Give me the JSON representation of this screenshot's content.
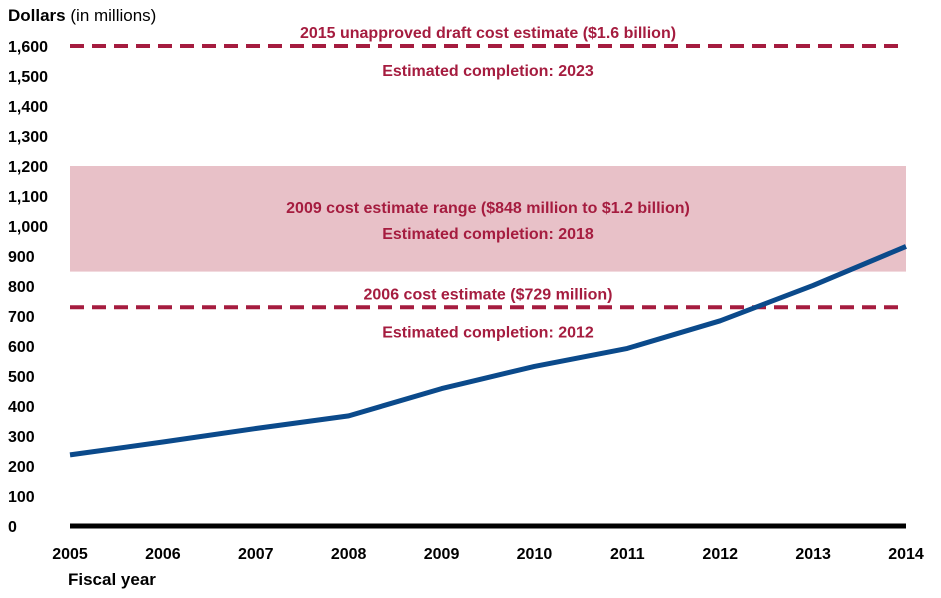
{
  "chart_data": {
    "type": "line",
    "ylabel": "Dollars",
    "ylabel_unit": "(in millions)",
    "xlabel": "Fiscal year",
    "x": [
      2005,
      2006,
      2007,
      2008,
      2009,
      2010,
      2011,
      2012,
      2013,
      2014
    ],
    "series": [
      {
        "values": [
          237,
          280,
          325,
          367,
          458,
          532,
          592,
          684,
          802,
          932
        ]
      }
    ],
    "ylim": [
      0,
      1600
    ],
    "yticks": [
      0,
      100,
      200,
      300,
      400,
      500,
      600,
      700,
      800,
      900,
      1000,
      1100,
      1200,
      1300,
      1400,
      1500,
      1600
    ],
    "ytick_labels": [
      "0",
      "100",
      "200",
      "300",
      "400",
      "500",
      "600",
      "700",
      "800",
      "900",
      "1,000",
      "1,100",
      "1,200",
      "1,300",
      "1,400",
      "1,500",
      "1,600"
    ],
    "reference_lines": [
      {
        "value": 1600,
        "label_above": "2015 unapproved draft cost estimate ($1.6 billion)",
        "label_below": "Estimated completion: 2023"
      },
      {
        "value": 729,
        "label_above": "2006 cost estimate ($729 million)",
        "label_below": "Estimated completion: 2012"
      }
    ],
    "range_band": {
      "from": 848,
      "to": 1200,
      "label_line1": "2009 cost estimate range ($848 million to $1.2 billion)",
      "label_line2": "Estimated completion: 2018"
    },
    "grid": false,
    "colors": {
      "line": "#0b4a8b",
      "estimate": "#a51c3f",
      "band": "#e8c1c8",
      "axis": "#000000"
    }
  }
}
